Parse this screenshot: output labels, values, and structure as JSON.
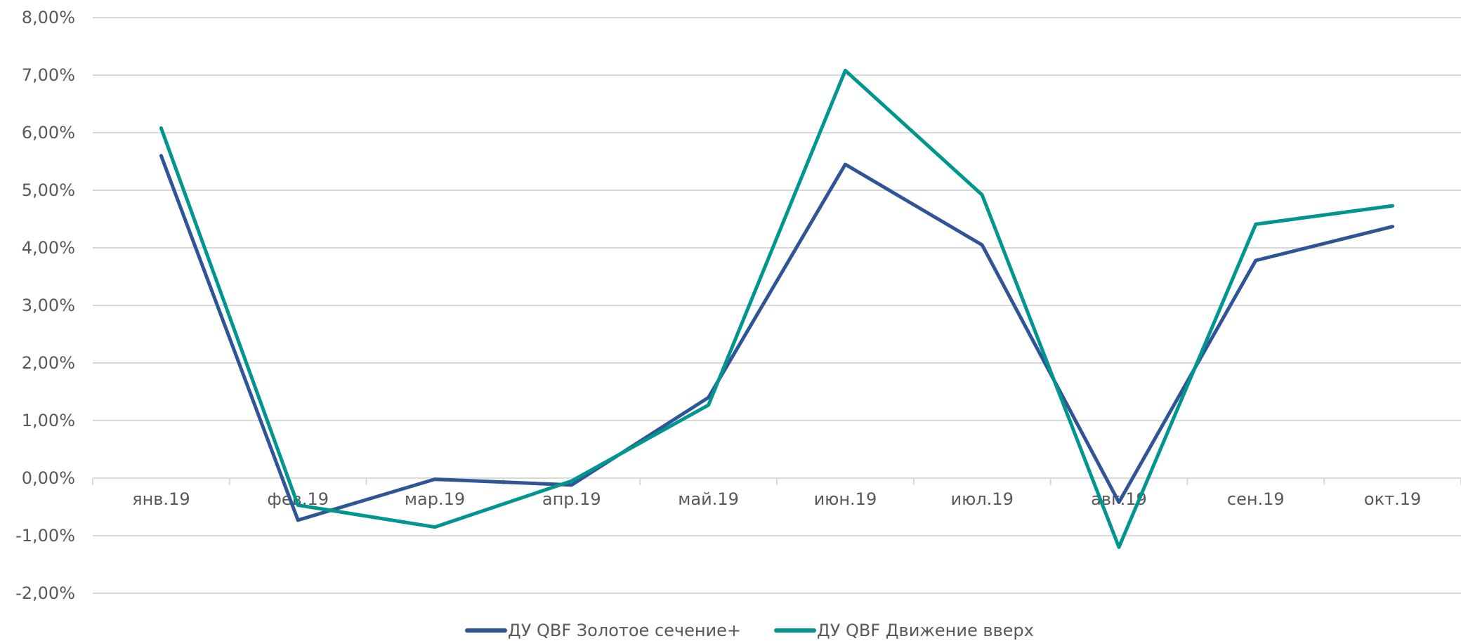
{
  "chart_data": {
    "type": "line",
    "title": "",
    "xlabel": "",
    "ylabel": "",
    "categories": [
      "янв.19",
      "фев.19",
      "мар.19",
      "апр.19",
      "май.19",
      "июн.19",
      "июл.19",
      "авг.19",
      "сен.19",
      "окт.19"
    ],
    "y_ticks": [
      "8,00%",
      "7,00%",
      "6,00%",
      "5,00%",
      "4,00%",
      "3,00%",
      "2,00%",
      "1,00%",
      "0,00%",
      "-1,00%",
      "-2,00%"
    ],
    "ylim": [
      -2,
      8
    ],
    "grid": true,
    "legend_position": "bottom",
    "series": [
      {
        "name": "ДУ QBF Золотое сечение+",
        "color": "#2F5597",
        "values": [
          5.6,
          -0.73,
          -0.02,
          -0.12,
          1.4,
          5.45,
          4.05,
          -0.42,
          3.78,
          4.37
        ]
      },
      {
        "name": "ДУ QBF Движение вверх",
        "color": "#00968F",
        "values": [
          6.08,
          -0.47,
          -0.85,
          -0.05,
          1.27,
          7.08,
          4.92,
          -1.2,
          4.41,
          4.73
        ]
      }
    ]
  }
}
